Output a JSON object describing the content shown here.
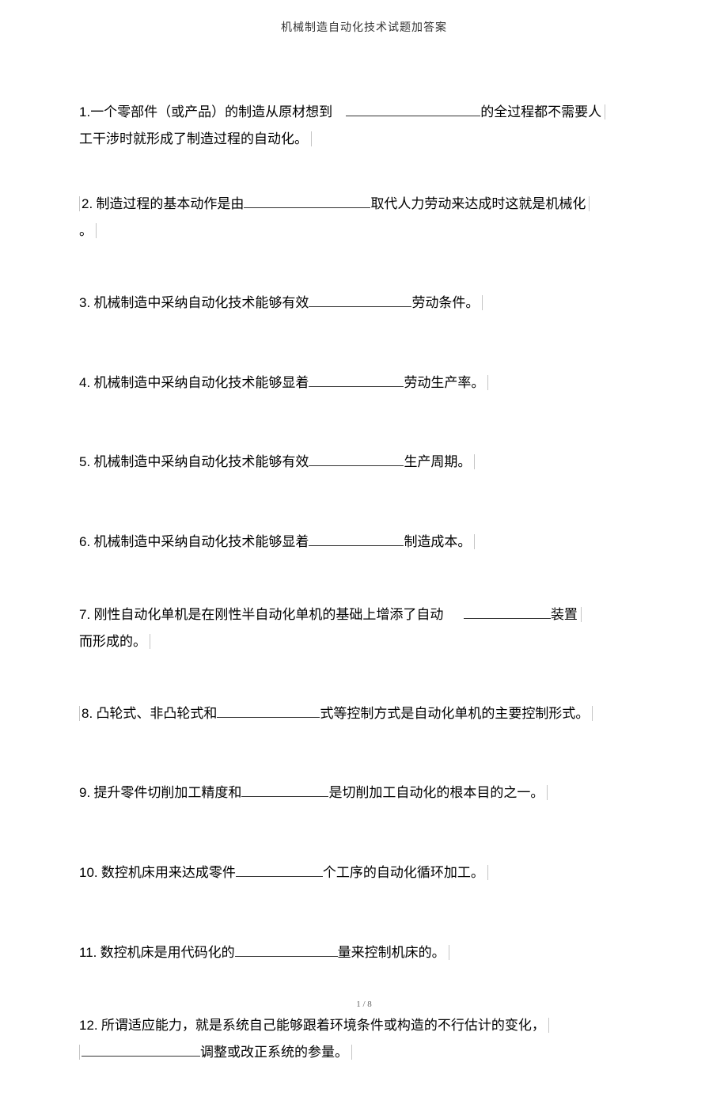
{
  "header": {
    "title": "机械制造自动化技术试题加答案"
  },
  "questions": {
    "q1": {
      "num": "1.",
      "text_a": "一个零部件（或产品）的制造从原材想到",
      "text_b": "的全过程都不需要人",
      "text_c": "工干涉时就形成了制造过程的自动化。",
      "blank_width": 170
    },
    "q2": {
      "num": "2.",
      "text_a": " 制造过程的基本动作是由",
      "text_b": "取代人力劳动来达成时这就是机械化",
      "text_c": "。",
      "blank_width": 160
    },
    "q3": {
      "num": "3.",
      "text_a": " 机械制造中采纳自动化技术能够有效",
      "text_b": "劳动条件。",
      "blank_width": 130
    },
    "q4": {
      "num": "4.",
      "text_a": "  机械制造中采纳自动化技术能够显着",
      "text_b": "劳动生产率。",
      "blank_width": 120
    },
    "q5": {
      "num": "5.",
      "text_a": "  机械制造中采纳自动化技术能够有效",
      "text_b": "生产周期。",
      "blank_width": 120
    },
    "q6": {
      "num": "6.",
      "text_a": "  机械制造中采纳自动化技术能够显着",
      "text_b": "制造成本。",
      "blank_width": 120
    },
    "q7": {
      "num": "7.",
      "text_a": "  刚性自动化单机是在刚性半自动化单机的基础上增添了自动",
      "text_b": "装置",
      "text_c": "而形成的。",
      "blank_width": 110
    },
    "q8": {
      "num": "8.",
      "text_a": "  凸轮式、非凸轮式和",
      "text_b": "式等控制方式是自动化单机的主要控制形式。",
      "blank_width": 130
    },
    "q9": {
      "num": "9.",
      "text_a": "  提升零件切削加工精度和",
      "text_b": "是切削加工自动化的根本目的之一。",
      "blank_width": 110
    },
    "q10": {
      "num": "10.",
      "text_a": "  数控机床用来达成零件",
      "text_b": "个工序的自动化循环加工。",
      "blank_width": 110
    },
    "q11": {
      "num": "11.",
      "text_a": "  数控机床是用代码化的",
      "text_b": "量来控制机床的。",
      "blank_width": 130
    },
    "q12": {
      "num": "12.",
      "text_a": "  所谓适应能力，就是系统自己能够跟着环境条件或构造的不行估计的变化，",
      "text_b": "调整或改正系统的参量。",
      "blank_width": 150
    }
  },
  "footer": {
    "page": "1 / 8"
  },
  "style": {
    "background_color": "#ffffff",
    "text_color": "#000000",
    "header_color": "#333333",
    "footer_color": "#666666",
    "border_color": "#c5c5c5",
    "body_fontsize": 17,
    "header_fontsize": 14,
    "footer_fontsize": 11
  }
}
